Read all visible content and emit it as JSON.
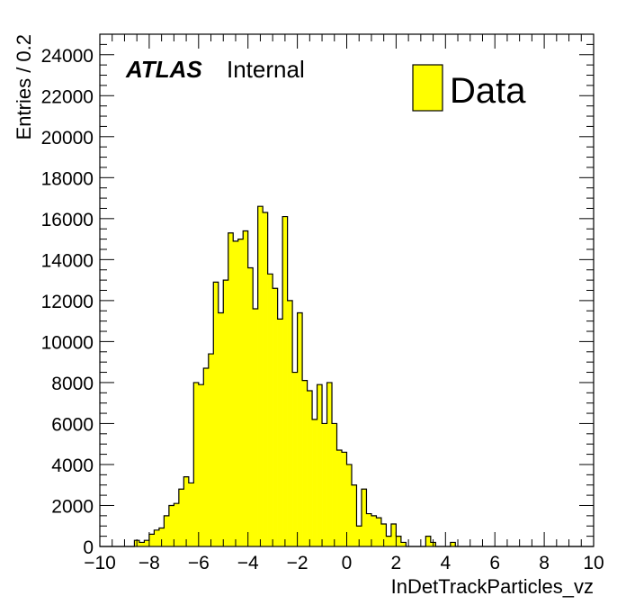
{
  "chart_data": {
    "type": "bar",
    "histogram": true,
    "xlabel": "InDetTrackParticles_vz",
    "ylabel": "Entries / 0.2",
    "xlim": [
      -10,
      10
    ],
    "ylim": [
      0,
      25000
    ],
    "bin_width": 0.2,
    "x_ticks": [
      -10,
      -8,
      -6,
      -4,
      -2,
      0,
      2,
      4,
      6,
      8,
      10
    ],
    "x_tick_labels": [
      "−10",
      "−8",
      "−6",
      "−4",
      "−2",
      "0",
      "2",
      "4",
      "6",
      "8",
      "10"
    ],
    "y_ticks": [
      0,
      2000,
      4000,
      6000,
      8000,
      10000,
      12000,
      14000,
      16000,
      18000,
      20000,
      22000,
      24000
    ],
    "y_tick_labels": [
      "0",
      "2000",
      "4000",
      "6000",
      "8000",
      "10000",
      "12000",
      "14000",
      "16000",
      "18000",
      "20000",
      "22000",
      "24000"
    ],
    "grid": false,
    "legend_position": "top-right",
    "fill_color": "#ffff00",
    "line_color": "#000000",
    "series": [
      {
        "name": "Data",
        "x": [
          -9.9,
          -9.7,
          -9.5,
          -9.3,
          -9.1,
          -8.9,
          -8.7,
          -8.5,
          -8.3,
          -8.1,
          -7.9,
          -7.7,
          -7.5,
          -7.3,
          -7.1,
          -6.9,
          -6.7,
          -6.5,
          -6.3,
          -6.1,
          -5.9,
          -5.7,
          -5.5,
          -5.3,
          -5.1,
          -4.9,
          -4.7,
          -4.5,
          -4.3,
          -4.1,
          -3.9,
          -3.7,
          -3.5,
          -3.3,
          -3.1,
          -2.9,
          -2.7,
          -2.5,
          -2.3,
          -2.1,
          -1.9,
          -1.7,
          -1.5,
          -1.3,
          -1.1,
          -0.9,
          -0.7,
          -0.5,
          -0.3,
          -0.1,
          0.1,
          0.3,
          0.5,
          0.7,
          0.9,
          1.1,
          1.3,
          1.5,
          1.7,
          1.9,
          2.1,
          2.3,
          2.5,
          2.7,
          2.9,
          3.1,
          3.3,
          3.5,
          3.7,
          3.9,
          4.1,
          4.3,
          4.5,
          4.7,
          4.9
        ],
        "values": [
          0,
          0,
          0,
          0,
          0,
          0,
          0,
          300,
          200,
          300,
          600,
          800,
          900,
          1500,
          2000,
          2100,
          2800,
          3400,
          3100,
          8000,
          7900,
          8700,
          9400,
          12900,
          11400,
          13000,
          15300,
          14900,
          15000,
          15400,
          13600,
          11600,
          16600,
          16300,
          13300,
          12600,
          11100,
          16100,
          12000,
          8500,
          11400,
          8100,
          7600,
          6200,
          7900,
          6000,
          8000,
          6000,
          4700,
          4600,
          4000,
          3000,
          1000,
          2800,
          1600,
          1500,
          1400,
          1100,
          500,
          1100,
          500,
          200,
          0,
          0,
          0,
          0,
          500,
          200,
          0,
          0,
          0,
          200,
          0,
          0,
          0
        ]
      }
    ]
  }
}
